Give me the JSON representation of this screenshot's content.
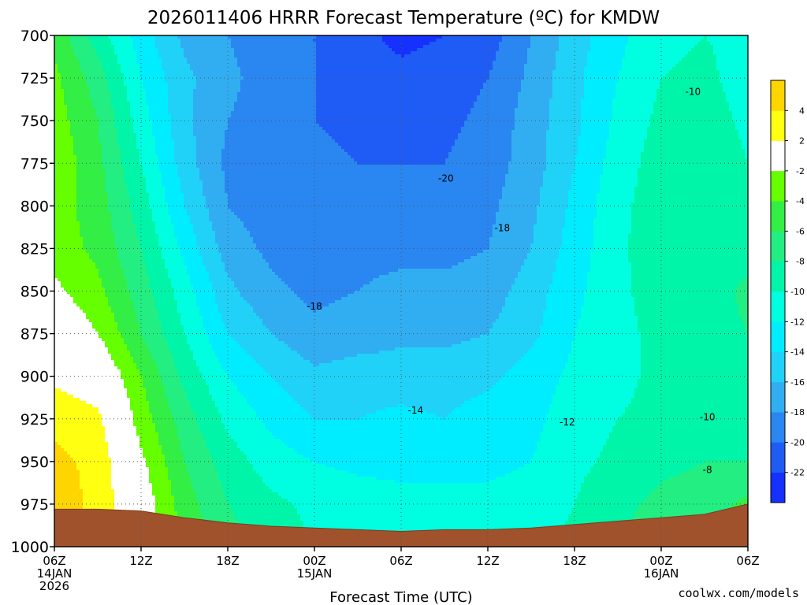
{
  "chart_data": {
    "type": "heatmap",
    "title": "2026011406 HRRR Forecast Temperature (ºC) for KMDW",
    "xlabel": "Forecast Time (UTC)",
    "ylabel": "",
    "credit": "coolwx.com/models",
    "y_range": [
      700,
      1000
    ],
    "y_inverted": true,
    "y_ticks": [
      700,
      725,
      750,
      775,
      800,
      825,
      850,
      875,
      900,
      925,
      950,
      975,
      1000
    ],
    "x_range_hours": [
      0,
      48
    ],
    "x_ticks": [
      {
        "hour": 0,
        "lines": [
          "06Z",
          "14JAN",
          "2026"
        ]
      },
      {
        "hour": 6,
        "lines": [
          "12Z"
        ]
      },
      {
        "hour": 12,
        "lines": [
          "18Z"
        ]
      },
      {
        "hour": 18,
        "lines": [
          "00Z",
          "15JAN"
        ]
      },
      {
        "hour": 24,
        "lines": [
          "06Z"
        ]
      },
      {
        "hour": 30,
        "lines": [
          "12Z"
        ]
      },
      {
        "hour": 36,
        "lines": [
          "18Z"
        ]
      },
      {
        "hour": 42,
        "lines": [
          "00Z",
          "16JAN"
        ]
      },
      {
        "hour": 48,
        "lines": [
          "06Z"
        ]
      }
    ],
    "grid": true,
    "colorbar": {
      "levels": [
        -24,
        -22,
        -20,
        -18,
        -16,
        -14,
        -12,
        -10,
        -8,
        -6,
        -4,
        -2,
        2,
        4,
        6
      ],
      "colors": [
        "#1530ff",
        "#1f5cf5",
        "#2a86f0",
        "#31aef2",
        "#20d2f7",
        "#00ecff",
        "#00ffe0",
        "#00f5a8",
        "#22ee82",
        "#33ee44",
        "#66ff00",
        "#ffffff",
        "#ffff11",
        "#ffd500"
      ],
      "tick_labels": [
        "-22",
        "-20",
        "-18",
        "-16",
        "-14",
        "-12",
        "-10",
        "-8",
        "-6",
        "-4",
        "-2",
        "2",
        "4"
      ]
    },
    "contour_labels": [
      {
        "text": "-10",
        "hour": 44.2,
        "p": 733
      },
      {
        "text": "-20",
        "hour": 27.1,
        "p": 784
      },
      {
        "text": "-18",
        "hour": 31.0,
        "p": 813
      },
      {
        "text": "-18",
        "hour": 18.0,
        "p": 859
      },
      {
        "text": "-14",
        "hour": 25.0,
        "p": 920
      },
      {
        "text": "-12",
        "hour": 35.5,
        "p": 927
      },
      {
        "text": "-10",
        "hour": 45.2,
        "p": 924
      },
      {
        "text": "-8",
        "hour": 45.2,
        "p": 955
      }
    ],
    "temperature_grid": {
      "hours": [
        0,
        3,
        6,
        9,
        12,
        15,
        18,
        21,
        24,
        27,
        30,
        33,
        36,
        39,
        42,
        45,
        48
      ],
      "levels_hpa": [
        700,
        725,
        750,
        775,
        800,
        825,
        850,
        875,
        900,
        925,
        950,
        975,
        1000
      ],
      "values": [
        [
          -4.5,
          -9,
          -13,
          -16.5,
          -18,
          -19.5,
          -20,
          -21.5,
          -22.5,
          -22,
          -21,
          -18,
          -15,
          -12.5,
          -10.5,
          -10,
          -10.5
        ],
        [
          -3.5,
          -7,
          -12,
          -15.5,
          -17.5,
          -19,
          -20,
          -21,
          -21.5,
          -21,
          -20,
          -17.5,
          -14.5,
          -12,
          -10,
          -9.5,
          -11
        ],
        [
          -3,
          -6,
          -11,
          -15.5,
          -18,
          -19,
          -20,
          -20.5,
          -20.5,
          -20.5,
          -19.5,
          -17,
          -14.5,
          -11.5,
          -9.5,
          -9,
          -10.5
        ],
        [
          -2.5,
          -5.5,
          -10,
          -15,
          -18.5,
          -19.5,
          -19.5,
          -20,
          -20,
          -20,
          -19,
          -17,
          -14,
          -11,
          -9,
          -8.5,
          -10
        ],
        [
          -3,
          -5,
          -9,
          -14,
          -18,
          -19,
          -19.5,
          -19.5,
          -19.5,
          -19,
          -18.5,
          -16.5,
          -13.5,
          -10.5,
          -9,
          -9,
          -9.5
        ],
        [
          -3,
          -4.5,
          -8,
          -12.5,
          -17,
          -18.5,
          -19,
          -18.5,
          -18.5,
          -18.5,
          -18,
          -16,
          -13,
          -10.5,
          -8.5,
          -8.5,
          -9
        ],
        [
          -1.5,
          -3.5,
          -7,
          -11,
          -15.5,
          -17.5,
          -18.5,
          -18,
          -17.5,
          -17.5,
          -17,
          -15,
          -12.5,
          -10.5,
          -9,
          -9,
          -7.5
        ],
        [
          0.5,
          -2,
          -6,
          -10,
          -14,
          -16,
          -17.5,
          -17,
          -16.5,
          -16.5,
          -16,
          -14.5,
          -12,
          -10.5,
          -9.5,
          -9,
          -8
        ],
        [
          1.5,
          0.5,
          -4,
          -8.5,
          -12,
          -14,
          -15.5,
          -15,
          -15,
          -15,
          -14.5,
          -13,
          -11.5,
          -10.5,
          -9.5,
          -9.5,
          -9
        ],
        [
          3.5,
          2.5,
          -3,
          -7,
          -10.5,
          -12.5,
          -14,
          -14,
          -13.5,
          -14,
          -13,
          -12.5,
          -11,
          -10,
          -9.5,
          -9.5,
          -9
        ],
        [
          4.5,
          3.5,
          -1.5,
          -6,
          -9,
          -11,
          -12,
          -12.5,
          -12.5,
          -12.5,
          -12.5,
          -12,
          -10.5,
          -9.5,
          -8.5,
          -8,
          -8
        ],
        [
          5,
          3.5,
          -0.5,
          -5,
          -8,
          -9.5,
          -10.5,
          -11,
          -11.5,
          -11.5,
          -11.5,
          -11,
          -10,
          -8.5,
          -7.5,
          -7,
          -5.5
        ],
        [
          5,
          3.5,
          0,
          -4.5,
          -7,
          -9,
          -10,
          -10.5,
          -11,
          -11,
          -11,
          -10.5,
          -9.5,
          -8,
          -7,
          -6.5,
          -5
        ]
      ]
    },
    "terrain_surface_hpa": {
      "hours": [
        0,
        3,
        6,
        9,
        12,
        15,
        18,
        21,
        24,
        27,
        30,
        33,
        36,
        39,
        42,
        45,
        48
      ],
      "p": [
        978,
        978,
        979,
        983,
        986,
        988,
        989,
        990,
        991,
        990,
        990,
        989,
        987,
        985,
        983,
        981,
        975
      ]
    }
  }
}
